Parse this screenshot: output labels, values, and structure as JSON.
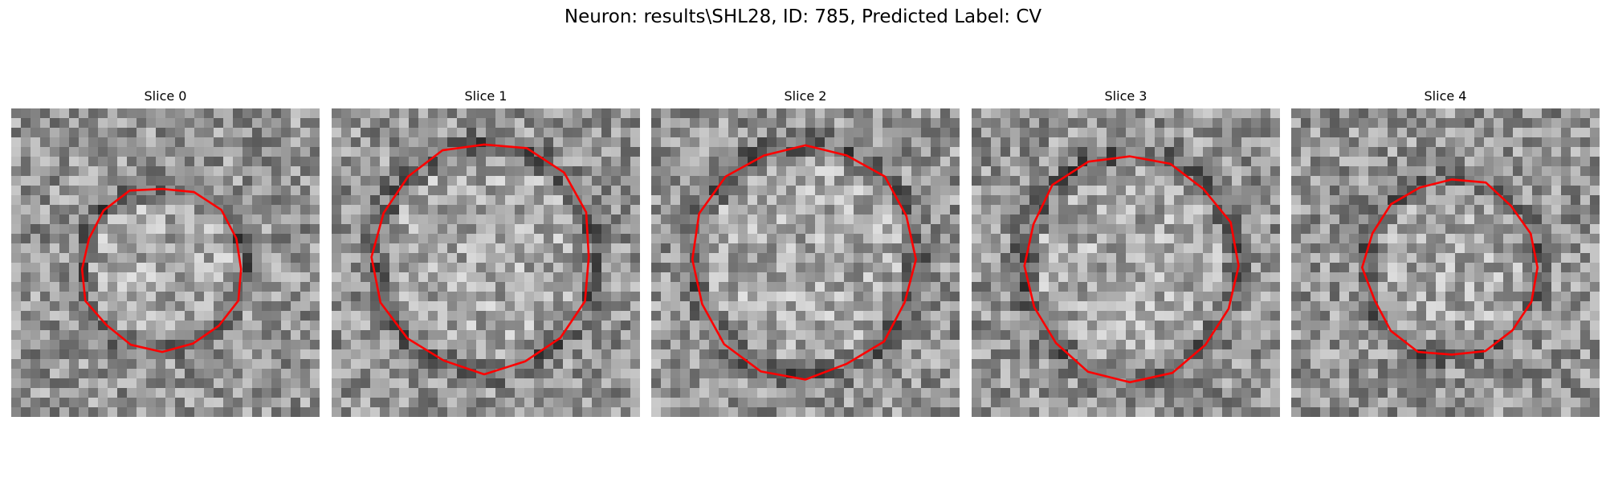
{
  "figure": {
    "title": "Neuron: results\\SHL28, ID: 785, Predicted Label: CV",
    "contour_color": "#ff0000",
    "panels": [
      {
        "title": "Slice 0",
        "seed": 11
      },
      {
        "title": "Slice 1",
        "seed": 23
      },
      {
        "title": "Slice 2",
        "seed": 37
      },
      {
        "title": "Slice 3",
        "seed": 51
      },
      {
        "title": "Slice 4",
        "seed": 67
      }
    ]
  }
}
